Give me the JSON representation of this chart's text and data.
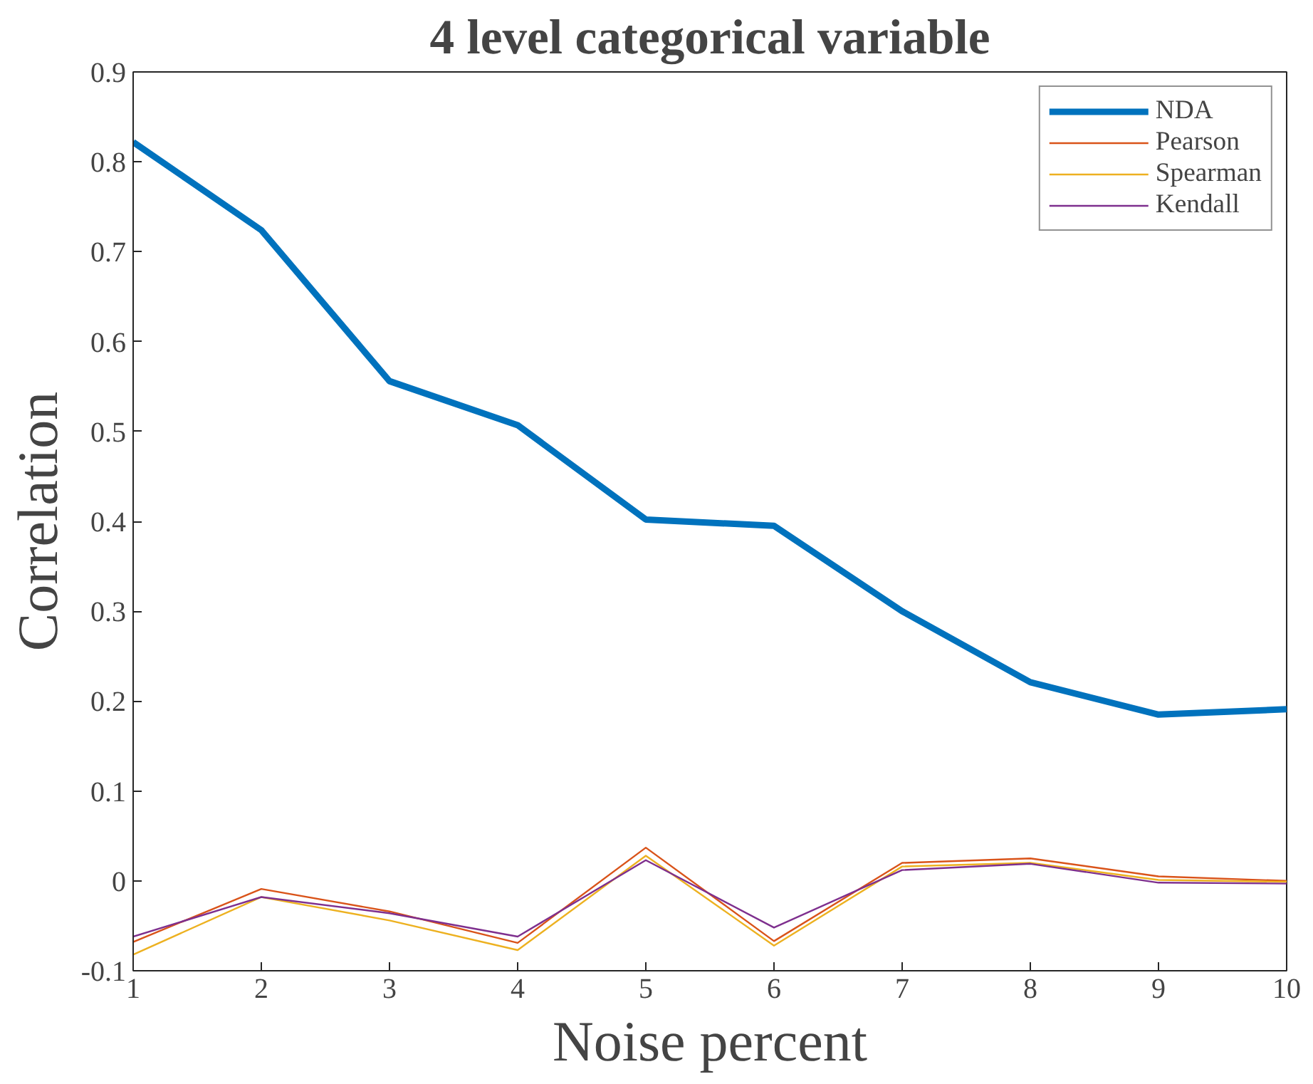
{
  "chart_data": {
    "type": "line",
    "title": "4 level categorical variable",
    "xlabel": "Noise percent",
    "ylabel": "Correlation",
    "x": [
      1,
      2,
      3,
      4,
      5,
      6,
      7,
      8,
      9,
      10
    ],
    "series": [
      {
        "name": "NDA",
        "color": "#0072bd",
        "values": [
          0.822,
          0.724,
          0.556,
          0.507,
          0.402,
          0.395,
          0.3,
          0.221,
          0.185,
          0.191
        ]
      },
      {
        "name": "Pearson",
        "color": "#d95319",
        "values": [
          -0.068,
          -0.009,
          -0.034,
          -0.069,
          0.037,
          -0.067,
          0.02,
          0.025,
          0.005,
          0.0
        ]
      },
      {
        "name": "Spearman",
        "color": "#edb120",
        "values": [
          -0.082,
          -0.018,
          -0.044,
          -0.077,
          0.028,
          -0.072,
          0.016,
          0.02,
          0.001,
          -0.001
        ]
      },
      {
        "name": "Kendall",
        "color": "#7e2f8e",
        "values": [
          -0.062,
          -0.018,
          -0.036,
          -0.062,
          0.023,
          -0.052,
          0.012,
          0.019,
          -0.002,
          -0.003
        ]
      }
    ],
    "xlim": [
      1,
      10
    ],
    "ylim": [
      -0.1,
      0.9
    ],
    "xticks": [
      1,
      2,
      3,
      4,
      5,
      6,
      7,
      8,
      9,
      10
    ],
    "yticks": [
      -0.1,
      0,
      0.1,
      0.2,
      0.3,
      0.4,
      0.5,
      0.6,
      0.7,
      0.8,
      0.9
    ],
    "grid": false,
    "legend": "top right",
    "line_style": "solid"
  }
}
